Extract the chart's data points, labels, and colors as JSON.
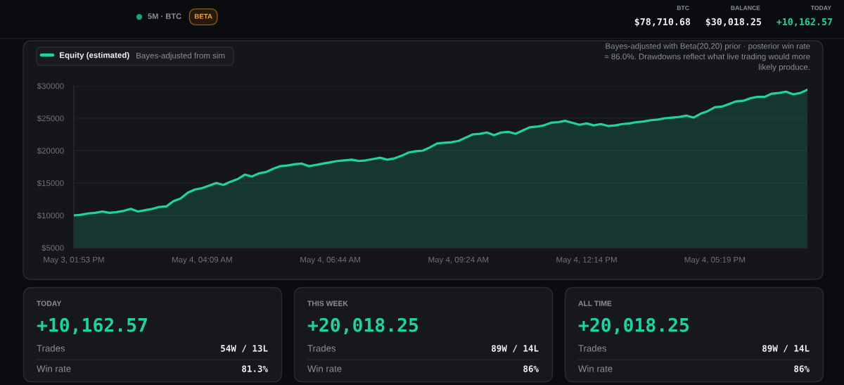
{
  "chart_data": [
    {
      "type": "other",
      "subtitle": "5M · BTC",
      "annotations": [
        "BETA"
      ],
      "categories": [
        "BTC",
        "BALANCE",
        "TODAY"
      ],
      "value_labels": [
        "$78,710.68",
        "$30,018.25",
        "+10,162.57"
      ],
      "colors": [
        "#f1f2f4",
        "#f1f2f4",
        "#1fd3a0"
      ]
    },
    {
      "type": "area",
      "categories": [
        "May 3, 01:53 PM",
        null,
        null,
        null,
        null,
        null,
        null,
        null,
        null,
        null,
        null,
        null,
        null,
        null,
        null,
        null,
        null,
        null,
        "May 4, 04:09 AM",
        null,
        null,
        null,
        null,
        null,
        null,
        null,
        null,
        null,
        null,
        null,
        null,
        null,
        null,
        null,
        null,
        null,
        "May 4, 06:44 AM",
        null,
        null,
        null,
        null,
        null,
        null,
        null,
        null,
        null,
        null,
        null,
        null,
        null,
        null,
        null,
        null,
        null,
        "May 4, 09:24 AM",
        null,
        null,
        null,
        null,
        null,
        null,
        null,
        null,
        null,
        null,
        null,
        null,
        null,
        null,
        null,
        null,
        null,
        "May 4, 12:14 PM",
        null,
        null,
        null,
        null,
        null,
        null,
        null,
        null,
        null,
        null,
        null,
        null,
        null,
        null,
        null,
        null,
        null,
        "May 4, 05:19 PM",
        null,
        null,
        null,
        null,
        null,
        null,
        null,
        null,
        null,
        null,
        null,
        null,
        null
      ],
      "series": [
        {
          "name": "Equity (estimated)",
          "color": "#1fd3a0",
          "values": [
            10000,
            10100,
            10300,
            10400,
            10600,
            10400,
            10500,
            10700,
            11000,
            10600,
            10800,
            11000,
            11300,
            11400,
            12200,
            12600,
            13500,
            14000,
            14200,
            14600,
            15000,
            14700,
            15200,
            15600,
            16300,
            16000,
            16500,
            16700,
            17200,
            17600,
            17700,
            17900,
            18000,
            17600,
            17800,
            18000,
            18200,
            18400,
            18500,
            18600,
            18400,
            18500,
            18700,
            18900,
            18600,
            18800,
            19200,
            19700,
            19900,
            20000,
            20500,
            21100,
            21200,
            21300,
            21500,
            22000,
            22500,
            22600,
            22800,
            22400,
            22800,
            22900,
            22600,
            23100,
            23600,
            23700,
            23900,
            24300,
            24400,
            24600,
            24300,
            24000,
            24200,
            23900,
            24100,
            23800,
            23900,
            24100,
            24200,
            24400,
            24500,
            24700,
            24800,
            25000,
            25100,
            25200,
            25400,
            25100,
            25700,
            26100,
            26700,
            26800,
            27200,
            27600,
            27700,
            28100,
            28300,
            28300,
            28800,
            28900,
            29100,
            28700,
            28900,
            29400
          ]
        }
      ],
      "ylim": [
        5000,
        30000
      ],
      "yticks": [
        {
          "value": 5000,
          "label": "$5000"
        },
        {
          "value": 10000,
          "label": "$10000"
        },
        {
          "value": 15000,
          "label": "$15000"
        },
        {
          "value": 20000,
          "label": "$20000"
        },
        {
          "value": 25000,
          "label": "$25000"
        },
        {
          "value": 30000,
          "label": "$30000"
        }
      ],
      "grid": "y",
      "legend": "top left",
      "annotations": [
        "Bayes-adjusted from sim",
        "Bayes-adjusted with Beta(20,20) prior · posterior win rate ≈ 86.0%. Drawdowns reflect what live trading would more likely produce."
      ]
    },
    {
      "type": "other",
      "title": "TODAY",
      "subtitle": "+10,162.57",
      "categories": [
        "Trades",
        "Win rate"
      ],
      "value_labels": [
        "54W / 13L",
        "81.3%"
      ]
    },
    {
      "type": "other",
      "title": "THIS WEEK",
      "subtitle": "+20,018.25",
      "categories": [
        "Trades",
        "Win rate"
      ],
      "value_labels": [
        "89W / 14L",
        "86%"
      ]
    },
    {
      "type": "other",
      "title": "ALL TIME",
      "subtitle": "+20,018.25",
      "categories": [
        "Trades",
        "Win rate"
      ],
      "value_labels": [
        "89W / 14L",
        "86%"
      ]
    }
  ]
}
